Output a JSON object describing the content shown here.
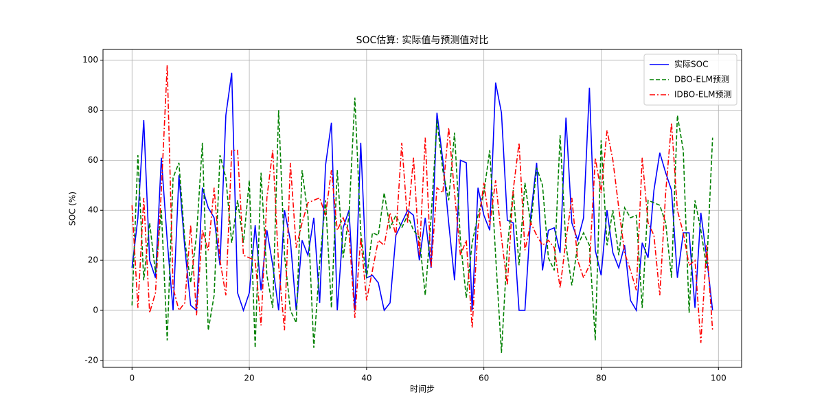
{
  "chart_data": {
    "type": "line",
    "title": "SOC估算: 实际值与预测值对比",
    "x_label": "时间步",
    "y_label": "SOC (%)",
    "x": [
      0,
      1,
      2,
      3,
      4,
      5,
      6,
      7,
      8,
      9,
      10,
      11,
      12,
      13,
      14,
      15,
      16,
      17,
      18,
      19,
      20,
      21,
      22,
      23,
      24,
      25,
      26,
      27,
      28,
      29,
      30,
      31,
      32,
      33,
      34,
      35,
      36,
      37,
      38,
      39,
      40,
      41,
      42,
      43,
      44,
      45,
      46,
      47,
      48,
      49,
      50,
      51,
      52,
      53,
      54,
      55,
      56,
      57,
      58,
      59,
      60,
      61,
      62,
      63,
      64,
      65,
      66,
      67,
      68,
      69,
      70,
      71,
      72,
      73,
      74,
      75,
      76,
      77,
      78,
      79,
      80,
      81,
      82,
      83,
      84,
      85,
      86,
      87,
      88,
      89,
      90,
      91,
      92,
      93,
      94,
      95,
      96,
      97,
      98,
      99
    ],
    "series": [
      {
        "name": "实际SOC",
        "color": "#0000ff",
        "linestyle": "solid",
        "values": [
          17,
          37,
          76,
          20,
          13,
          61,
          28,
          0,
          54,
          25,
          2,
          0,
          49,
          41,
          37,
          18,
          78,
          95,
          7,
          0,
          7,
          34,
          8,
          32,
          18,
          0,
          40,
          28,
          0,
          28,
          22,
          37,
          3,
          58,
          75,
          0,
          33,
          40,
          0,
          67,
          13,
          14,
          11,
          0,
          3,
          30,
          35,
          40,
          38,
          20,
          37,
          17,
          79,
          60,
          35,
          12,
          60,
          59,
          0,
          49,
          38,
          32,
          91,
          79,
          36,
          35,
          0,
          0,
          38,
          59,
          16,
          32,
          33,
          23,
          77,
          35,
          28,
          37,
          89,
          24,
          14,
          40,
          23,
          17,
          26,
          4,
          0,
          27,
          21,
          48,
          63,
          55,
          48,
          13,
          31,
          31,
          1,
          39,
          21,
          0
        ]
      },
      {
        "name": "DBO-ELM预测",
        "color": "#008000",
        "linestyle": "dashed",
        "values": [
          2,
          62,
          12,
          35,
          15,
          40,
          -12,
          53,
          59,
          28,
          11,
          30,
          67,
          -8,
          6,
          62,
          53,
          27,
          44,
          27,
          52,
          -15,
          55,
          14,
          1,
          80,
          22,
          0,
          -5,
          56,
          38,
          -15,
          19,
          44,
          1,
          56,
          21,
          38,
          85,
          31,
          13,
          31,
          30,
          47,
          33,
          38,
          33,
          38,
          32,
          29,
          6,
          37,
          76,
          56,
          44,
          71,
          28,
          5,
          27,
          38,
          47,
          64,
          22,
          -17,
          25,
          48,
          18,
          51,
          34,
          57,
          50,
          21,
          16,
          70,
          26,
          10,
          26,
          31,
          26,
          -12,
          68,
          26,
          40,
          22,
          41,
          37,
          38,
          1,
          44,
          43,
          42,
          35,
          13,
          78,
          64,
          -1,
          44,
          32,
          17,
          69
        ]
      },
      {
        "name": "IDBO-ELM预测",
        "color": "#ff0000",
        "linestyle": "dashdot",
        "values": [
          42,
          1,
          45,
          -1,
          7,
          48,
          98,
          9,
          0,
          3,
          34,
          -2,
          32,
          24,
          49,
          20,
          6,
          64,
          64,
          22,
          21,
          20,
          -6,
          45,
          64,
          18,
          -8,
          59,
          25,
          35,
          43,
          44,
          45,
          38,
          56,
          32,
          37,
          31,
          -3,
          29,
          4,
          16,
          28,
          26,
          39,
          30,
          67,
          35,
          61,
          22,
          69,
          17,
          49,
          47,
          73,
          47,
          22,
          28,
          -7,
          33,
          51,
          34,
          52,
          29,
          10,
          48,
          67,
          24,
          35,
          30,
          26,
          28,
          25,
          9,
          28,
          45,
          20,
          13,
          18,
          61,
          47,
          72,
          60,
          41,
          23,
          16,
          8,
          61,
          35,
          30,
          6,
          47,
          75,
          40,
          31,
          18,
          20,
          -13,
          26,
          -8
        ]
      }
    ],
    "xlim": [
      -4.95,
      103.95
    ],
    "ylim": [
      -22.8,
      104.3
    ],
    "xticks": [
      0,
      20,
      40,
      60,
      80,
      100
    ],
    "yticks": [
      -20,
      0,
      20,
      40,
      60,
      80,
      100
    ],
    "grid": true,
    "legend": "upper right"
  }
}
